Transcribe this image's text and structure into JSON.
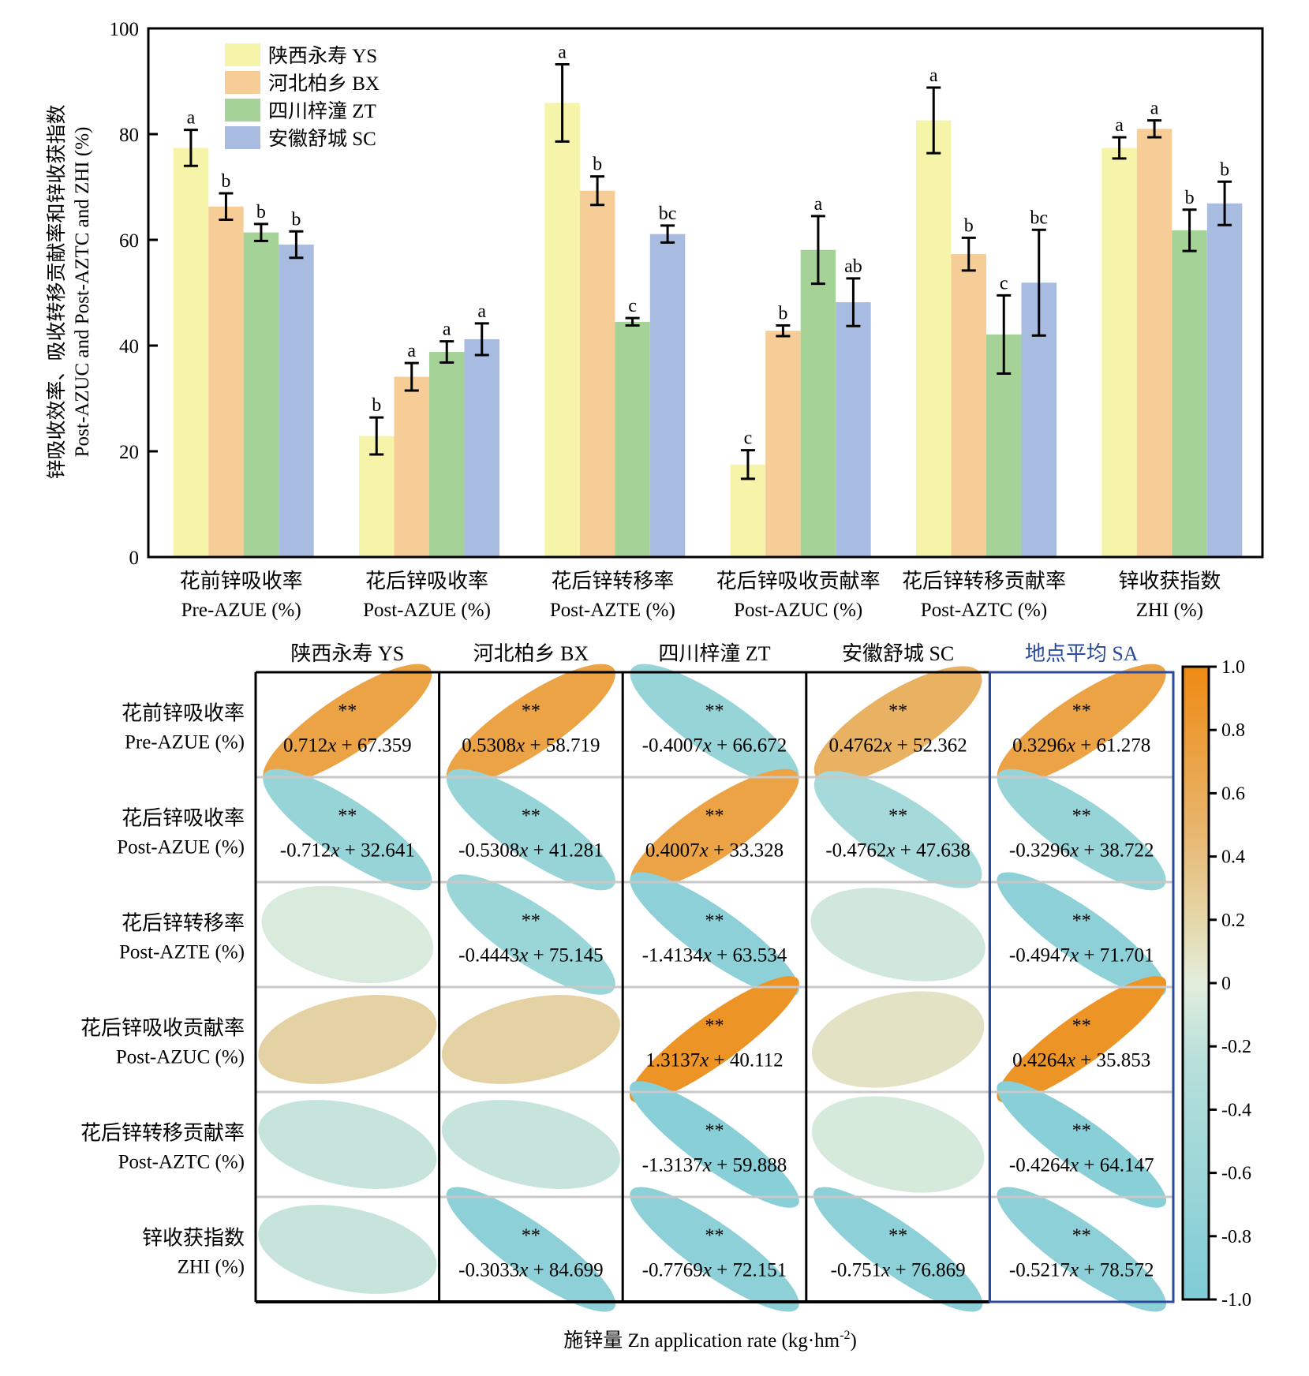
{
  "chart_data": [
    {
      "type": "bar",
      "title": "",
      "ylabel_cn": "锌吸收效率、吸收转移贡献率和锌收获指数",
      "ylabel_en": "Post-AZUC and Post-AZTC and ZHI (%)",
      "xlabel": "",
      "ylim": [
        0,
        100
      ],
      "yticks": [
        0,
        20,
        40,
        60,
        80,
        100
      ],
      "grid": false,
      "legend_position": "top-left",
      "categories": [
        {
          "cn": "花前锌吸收率",
          "en": "Pre-AZUE (%)"
        },
        {
          "cn": "花后锌吸收率",
          "en": "Post-AZUE (%)"
        },
        {
          "cn": "花后锌转移率",
          "en": "Post-AZTE (%)"
        },
        {
          "cn": "花后锌吸收贡献率",
          "en": "Post-AZUC (%)"
        },
        {
          "cn": "花后锌转移贡献率",
          "en": "Post-AZTC (%)"
        },
        {
          "cn": "锌收获指数",
          "en": "ZHI (%)"
        }
      ],
      "series": [
        {
          "name": "陕西永寿 YS",
          "color": "#f6f4a8",
          "values": [
            77.4,
            22.9,
            85.9,
            17.5,
            82.6,
            77.4
          ],
          "errors": [
            3.4,
            3.5,
            7.3,
            2.7,
            6.2,
            2.0
          ],
          "letters": [
            "a",
            "b",
            "a",
            "c",
            "a",
            "a"
          ]
        },
        {
          "name": "河北柏乡 BX",
          "color": "#f6cd97",
          "values": [
            66.3,
            34.1,
            69.3,
            42.8,
            57.3,
            81.0
          ],
          "errors": [
            2.5,
            2.6,
            2.7,
            1.0,
            3.1,
            1.6
          ],
          "letters": [
            "b",
            "a",
            "b",
            "b",
            "b",
            "a"
          ]
        },
        {
          "name": "四川梓潼 ZT",
          "color": "#a5d296",
          "values": [
            61.4,
            38.8,
            44.5,
            58.1,
            42.1,
            61.8
          ],
          "errors": [
            1.6,
            2.0,
            0.7,
            6.4,
            7.4,
            3.9
          ],
          "letters": [
            "b",
            "a",
            "c",
            "a",
            "c",
            "b"
          ]
        },
        {
          "name": "安徽舒城 SC",
          "color": "#a8bce2",
          "values": [
            59.1,
            41.2,
            61.1,
            48.2,
            51.9,
            66.9
          ],
          "errors": [
            2.5,
            3.0,
            1.6,
            4.5,
            10.0,
            4.1
          ],
          "letters": [
            "b",
            "a",
            "bc",
            "ab",
            "bc",
            "b"
          ]
        }
      ]
    },
    {
      "type": "heatmap",
      "title": "",
      "xlabel": "施锌量 Zn application rate (kg·hm⁻²)",
      "xlabel_parts": {
        "main": "施锌量 Zn application rate (kg·hm",
        "sup": "-2",
        "end": ")"
      },
      "columns": [
        {
          "label": "陕西永寿 YS",
          "highlight": false
        },
        {
          "label": "河北柏乡 BX",
          "highlight": false
        },
        {
          "label": "四川梓潼 ZT",
          "highlight": false
        },
        {
          "label": "安徽舒城 SC",
          "highlight": false
        },
        {
          "label": "地点平均 SA",
          "highlight": true,
          "color": "#2a4a9e"
        }
      ],
      "rows": [
        {
          "cn": "花前锌吸收率",
          "en": "Pre-AZUE (%)"
        },
        {
          "cn": "花后锌吸收率",
          "en": "Post-AZUE (%)"
        },
        {
          "cn": "花后锌转移率",
          "en": "Post-AZTE (%)"
        },
        {
          "cn": "花后锌吸收贡献率",
          "en": "Post-AZUC (%)"
        },
        {
          "cn": "花后锌转移贡献率",
          "en": "Post-AZTC (%)"
        },
        {
          "cn": "锌收获指数",
          "en": "ZHI (%)"
        }
      ],
      "colorbar": {
        "range": [
          -1.0,
          1.0
        ],
        "ticks": [
          "1.0",
          "0.8",
          "0.6",
          "0.4",
          "0.2",
          "0",
          "-0.2",
          "-0.4",
          "-0.6",
          "-0.8",
          "-1.0"
        ],
        "color_low": "#7ecbd6",
        "color_mid": "#e2eedd",
        "color_high": "#ee8a12"
      },
      "cells": [
        [
          {
            "r": 0.75,
            "sig": "**",
            "slope": "0.712",
            "intercept": "67.359"
          },
          {
            "r": 0.75,
            "sig": "**",
            "slope": "0.5308",
            "intercept": "58.719"
          },
          {
            "r": -0.75,
            "sig": "**",
            "slope": "-0.4007",
            "intercept": "66.672"
          },
          {
            "r": 0.6,
            "sig": "**",
            "slope": "0.4762",
            "intercept": "52.362"
          },
          {
            "r": 0.75,
            "sig": "**",
            "slope": "0.3296",
            "intercept": "61.278"
          }
        ],
        [
          {
            "r": -0.75,
            "sig": "**",
            "slope": "-0.712",
            "intercept": "32.641"
          },
          {
            "r": -0.75,
            "sig": "**",
            "slope": "-0.5308",
            "intercept": "41.281"
          },
          {
            "r": 0.75,
            "sig": "**",
            "slope": "0.4007",
            "intercept": "33.328"
          },
          {
            "r": -0.6,
            "sig": "**",
            "slope": "-0.4762",
            "intercept": "47.638"
          },
          {
            "r": -0.75,
            "sig": "**",
            "slope": "-0.3296",
            "intercept": "38.722"
          }
        ],
        [
          {
            "r": -0.1,
            "sig": "",
            "slope": "",
            "intercept": ""
          },
          {
            "r": -0.72,
            "sig": "**",
            "slope": "-0.4443",
            "intercept": "75.145"
          },
          {
            "r": -0.85,
            "sig": "**",
            "slope": "-1.4134",
            "intercept": "63.534"
          },
          {
            "r": -0.18,
            "sig": "",
            "slope": "",
            "intercept": ""
          },
          {
            "r": -0.85,
            "sig": "**",
            "slope": "-0.4947",
            "intercept": "71.701"
          }
        ],
        [
          {
            "r": 0.28,
            "sig": "",
            "slope": "",
            "intercept": ""
          },
          {
            "r": 0.28,
            "sig": "",
            "slope": "",
            "intercept": ""
          },
          {
            "r": 0.9,
            "sig": "**",
            "slope": "1.3137",
            "intercept": "40.112"
          },
          {
            "r": 0.12,
            "sig": "",
            "slope": "",
            "intercept": ""
          },
          {
            "r": 0.9,
            "sig": "**",
            "slope": "0.4264",
            "intercept": "35.853"
          }
        ],
        [
          {
            "r": -0.28,
            "sig": "",
            "slope": "",
            "intercept": ""
          },
          {
            "r": -0.28,
            "sig": "",
            "slope": "",
            "intercept": ""
          },
          {
            "r": -0.9,
            "sig": "**",
            "slope": "-1.3137",
            "intercept": "59.888"
          },
          {
            "r": -0.12,
            "sig": "",
            "slope": "",
            "intercept": ""
          },
          {
            "r": -0.9,
            "sig": "**",
            "slope": "-0.4264",
            "intercept": "64.147"
          }
        ],
        [
          {
            "r": -0.28,
            "sig": "",
            "slope": "",
            "intercept": ""
          },
          {
            "r": -0.85,
            "sig": "**",
            "slope": "-0.3033",
            "intercept": "84.699"
          },
          {
            "r": -0.85,
            "sig": "**",
            "slope": "-0.7769",
            "intercept": "72.151"
          },
          {
            "r": -0.85,
            "sig": "**",
            "slope": "-0.751",
            "intercept": "76.869"
          },
          {
            "r": -0.85,
            "sig": "**",
            "slope": "-0.5217",
            "intercept": "78.572"
          }
        ]
      ]
    }
  ]
}
